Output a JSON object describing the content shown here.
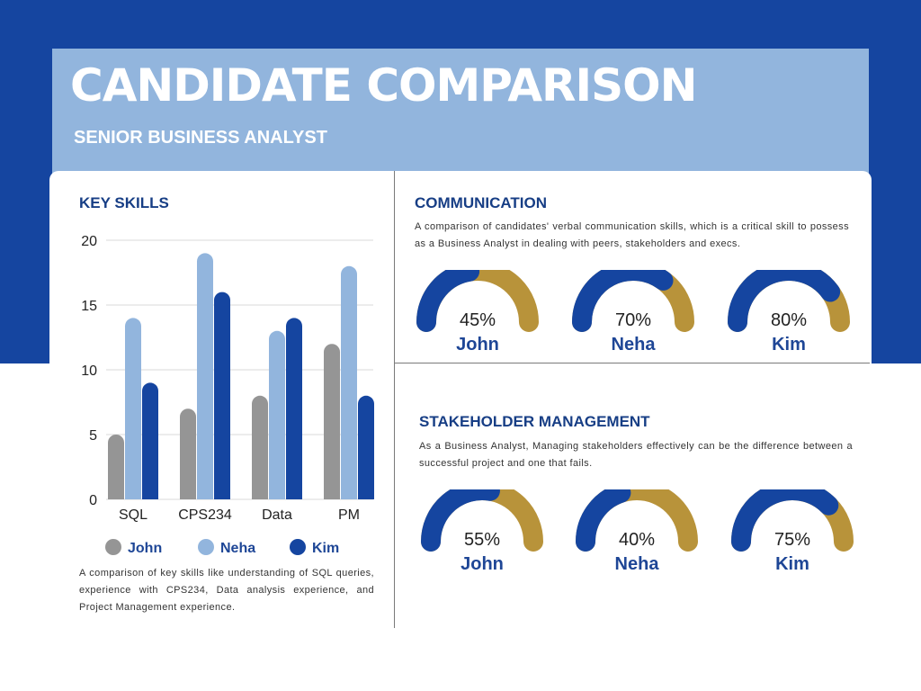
{
  "header": {
    "title": "CANDIDATE COMPARISON",
    "subtitle": "SENIOR BUSINESS ANALYST"
  },
  "colors": {
    "navy": "#1545a0",
    "header_band": "#92b5dd",
    "title_text": "#173e85",
    "gauge_fill": "#1545a0",
    "gauge_track": "#b8933a",
    "john": "#959595",
    "neha": "#92b5dd",
    "kim": "#1545a0"
  },
  "key_skills": {
    "title": "KEY SKILLS",
    "description": "A comparison of key skills like understanding of SQL queries, experience with CPS234, Data analysis experience, and Project Management experience."
  },
  "communication": {
    "title": "COMMUNICATION",
    "description": "A comparison of candidates' verbal communication skills, which is a critical skill to possess as a Business Analyst in dealing with peers, stakeholders and execs.",
    "gauges": [
      {
        "name": "John",
        "label": "45%",
        "value": 45
      },
      {
        "name": "Neha",
        "label": "70%",
        "value": 70
      },
      {
        "name": "Kim",
        "label": "80%",
        "value": 80
      }
    ]
  },
  "stakeholder": {
    "title": "STAKEHOLDER MANAGEMENT",
    "description": "As a Business Analyst, Managing stakeholders effectively can be the difference between a successful project and one that fails.",
    "gauges": [
      {
        "name": "John",
        "label": "55%",
        "value": 55
      },
      {
        "name": "Neha",
        "label": "40%",
        "value": 40
      },
      {
        "name": "Kim",
        "label": "75%",
        "value": 75
      }
    ]
  },
  "chart_data": {
    "type": "bar",
    "title": "KEY SKILLS",
    "categories": [
      "SQL",
      "CPS234",
      "Data",
      "PM"
    ],
    "series": [
      {
        "name": "John",
        "values": [
          5,
          7,
          8,
          12
        ]
      },
      {
        "name": "Neha",
        "values": [
          14,
          19,
          13,
          18
        ]
      },
      {
        "name": "Kim",
        "values": [
          9,
          16,
          14,
          8
        ]
      }
    ],
    "ylim": [
      0,
      20
    ],
    "yticks": [
      0,
      5,
      10,
      15,
      20
    ],
    "xlabel": "",
    "ylabel": "",
    "grid": true,
    "legend": "bottom"
  }
}
